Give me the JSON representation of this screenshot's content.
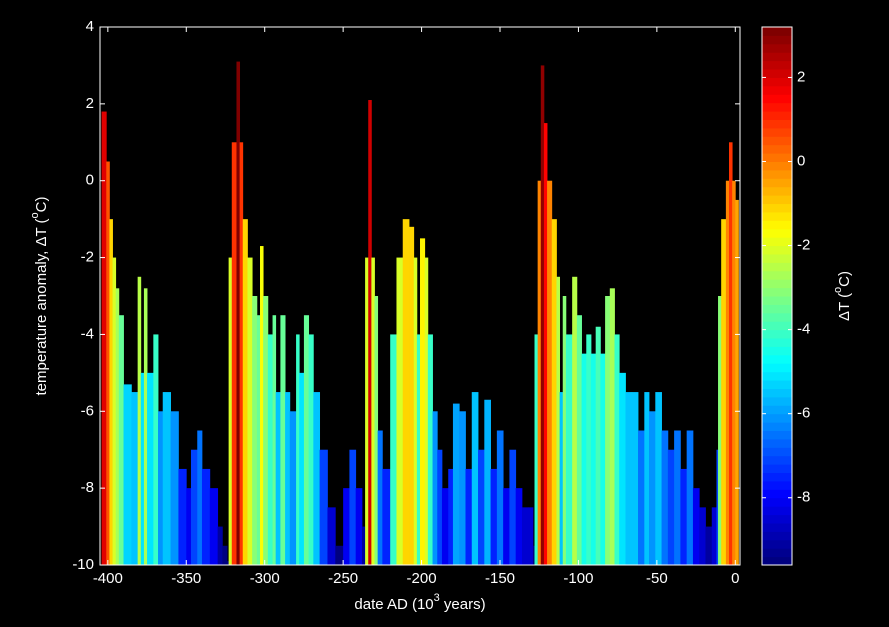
{
  "chart_data": {
    "type": "bar",
    "xlabel_parts": [
      "date AD (10",
      "3",
      " years)"
    ],
    "ylabel_parts": [
      "temperature anomaly,  ΔT  (",
      "o",
      "C)"
    ],
    "colorbar_label_parts": [
      "ΔT  (",
      "o",
      "C)"
    ],
    "colormap": "jet",
    "clim": [
      -9.6,
      3.2
    ],
    "cticks": [
      2,
      0,
      -2,
      -4,
      -6,
      -8
    ],
    "xlim": [
      -405,
      3
    ],
    "ylim": [
      -10,
      4
    ],
    "xticks": [
      -400,
      -350,
      -300,
      -250,
      -200,
      -150,
      -100,
      -50,
      0
    ],
    "yticks": [
      4,
      2,
      0,
      -2,
      -4,
      -6,
      -8,
      -10
    ],
    "x": [
      -404,
      -401,
      -399,
      -397,
      -395,
      -393,
      -390,
      -385,
      -381,
      -379,
      -377,
      -375,
      -371,
      -368,
      -365,
      -360,
      -355,
      -350,
      -347,
      -343,
      -340,
      -335,
      -330,
      -327,
      -324,
      -323,
      -321,
      -318,
      -316,
      -314,
      -311,
      -308,
      -305,
      -303,
      -301,
      -298,
      -295,
      -293,
      -290,
      -287,
      -284,
      -280,
      -278,
      -275,
      -272,
      -269,
      -265,
      -260,
      -255,
      -250,
      -246,
      -242,
      -238,
      -236,
      -234,
      -232,
      -230,
      -228,
      -225,
      -220,
      -216,
      -212,
      -208,
      -205,
      -203,
      -201,
      -198,
      -196,
      -193,
      -190,
      -187,
      -183,
      -180,
      -176,
      -172,
      -168,
      -164,
      -160,
      -156,
      -152,
      -148,
      -144,
      -140,
      -136,
      -132,
      -129,
      -128,
      -126,
      -124,
      -122,
      -120,
      -117,
      -114,
      -112,
      -110,
      -108,
      -104,
      -101,
      -98,
      -95,
      -92,
      -89,
      -86,
      -83,
      -80,
      -77,
      -74,
      -70,
      -66,
      -62,
      -58,
      -55,
      -51,
      -47,
      -43,
      -39,
      -35,
      -31,
      -27,
      -23,
      -19,
      -15,
      -12,
      -11,
      -9,
      -6,
      -4,
      -2,
      0
    ],
    "values": [
      1.8,
      0.5,
      -1,
      -2,
      -2.8,
      -3.5,
      -5.3,
      -5.5,
      -2.5,
      -5,
      -2.8,
      -5,
      -4,
      -6,
      -5.5,
      -6,
      -7.5,
      -8,
      -7,
      -6.5,
      -7.5,
      -8,
      -9,
      -9.5,
      -9.9,
      -2,
      1,
      3.1,
      1,
      -1,
      -2,
      -3,
      -3.5,
      -1.7,
      -3,
      -4,
      -3.5,
      -5.5,
      -3.5,
      -5.5,
      -6,
      -4,
      -5,
      -3.5,
      -4,
      -5.5,
      -7,
      -8.5,
      -9.5,
      -8,
      -7,
      -8,
      -9,
      -2,
      2.1,
      -2,
      -3,
      -6.5,
      -7.5,
      -4,
      -2,
      -1,
      -1.2,
      -2,
      -4,
      -1.5,
      -2,
      -4,
      -6,
      -7,
      -8,
      -7.5,
      -5.8,
      -6,
      -7.5,
      -5.5,
      -7,
      -5.7,
      -7.5,
      -6.5,
      -8,
      -7,
      -8,
      -8.5,
      -8.5,
      -9.5,
      -4,
      0,
      3,
      1.5,
      0,
      -1,
      -2.5,
      -5.5,
      -3,
      -4,
      -2.5,
      -3.5,
      -4.5,
      -4,
      -4.5,
      -3.8,
      -4.5,
      -3,
      -2.8,
      -4,
      -5,
      -5.5,
      -5.5,
      -6.5,
      -5.5,
      -6,
      -5.5,
      -6.5,
      -7,
      -6.5,
      -7.5,
      -6.5,
      -8,
      -8.5,
      -9,
      -8.5,
      -7,
      -3,
      -1,
      0,
      1,
      0,
      -0.5
    ]
  }
}
